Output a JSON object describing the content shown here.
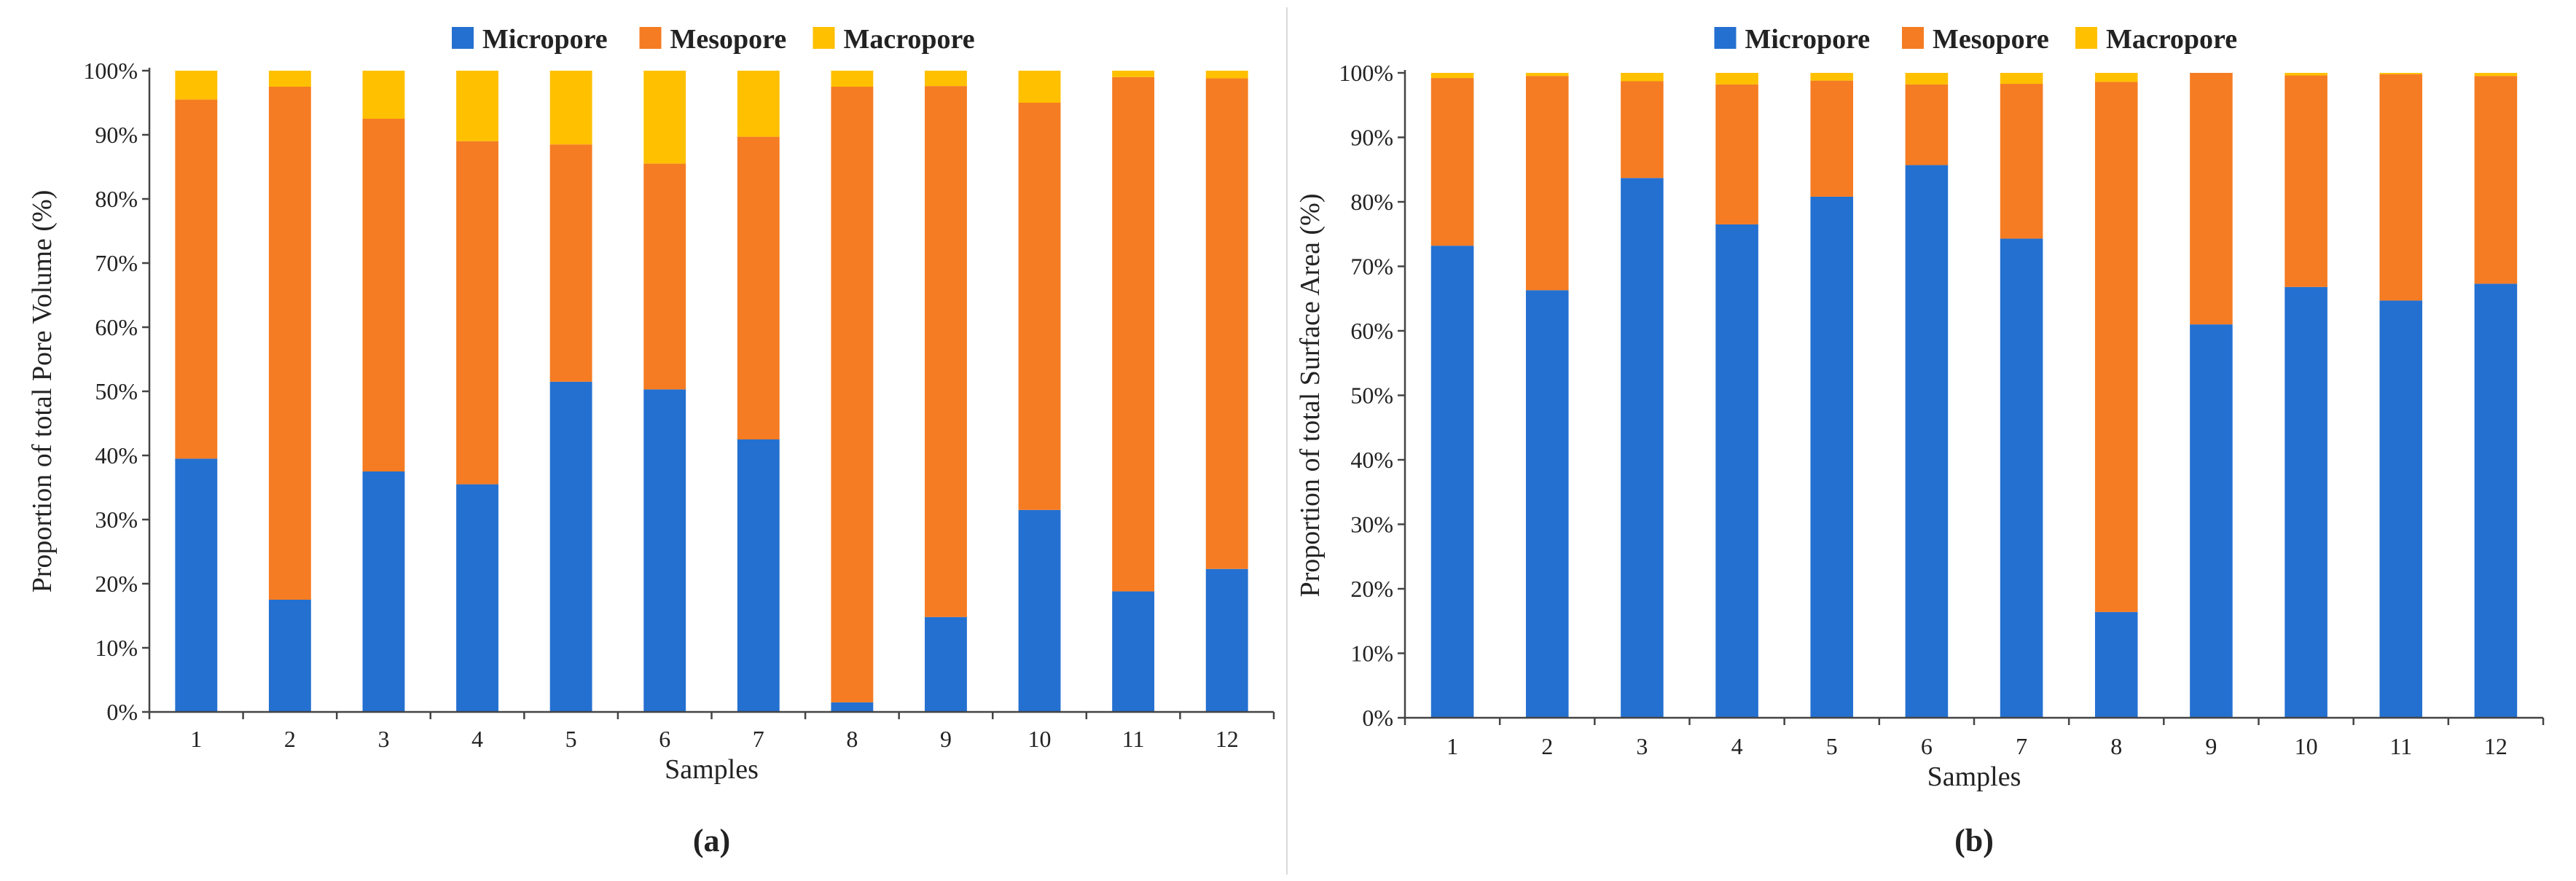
{
  "colors": {
    "micropore": "#2470d0",
    "mesopore": "#f57c22",
    "macropore": "#ffc000",
    "axis": "#444444",
    "divider": "#d9d9d9"
  },
  "chart_data": [
    {
      "type": "bar",
      "stacked": true,
      "panel_label": "(a)",
      "title": "",
      "xlabel": "Samples",
      "ylabel": "Proportion of total Pore Volume (%)",
      "ylim": [
        0,
        100
      ],
      "yticks": [
        0,
        10,
        20,
        30,
        40,
        50,
        60,
        70,
        80,
        90,
        100
      ],
      "ytick_labels": [
        "0%",
        "10%",
        "20%",
        "30%",
        "40%",
        "50%",
        "60%",
        "70%",
        "80%",
        "90%",
        "100%"
      ],
      "legend_position": "top-center",
      "categories": [
        "1",
        "2",
        "3",
        "4",
        "5",
        "6",
        "7",
        "8",
        "9",
        "10",
        "11",
        "12"
      ],
      "series": [
        {
          "name": "Micropore",
          "key": "micropore",
          "values": [
            39.5,
            17.5,
            37.5,
            35.5,
            51.5,
            50.3,
            42.5,
            1.5,
            14.8,
            31.5,
            18.8,
            22.3
          ]
        },
        {
          "name": "Mesopore",
          "key": "mesopore",
          "values": [
            56.0,
            80.0,
            55.0,
            53.5,
            37.0,
            35.2,
            47.2,
            96.0,
            82.8,
            63.5,
            80.2,
            76.5
          ]
        },
        {
          "name": "Macropore",
          "key": "macropore",
          "values": [
            4.5,
            2.5,
            7.5,
            11.0,
            11.5,
            14.5,
            10.3,
            2.5,
            2.4,
            5.0,
            1.0,
            1.2
          ]
        }
      ]
    },
    {
      "type": "bar",
      "stacked": true,
      "panel_label": "(b)",
      "title": "",
      "xlabel": "Samples",
      "ylabel": "Proportion of total Surface Area (%)",
      "ylim": [
        0,
        100
      ],
      "yticks": [
        0,
        10,
        20,
        30,
        40,
        50,
        60,
        70,
        80,
        90,
        100
      ],
      "ytick_labels": [
        "0%",
        "10%",
        "20%",
        "30%",
        "40%",
        "50%",
        "60%",
        "70%",
        "80%",
        "90%",
        "100%"
      ],
      "legend_position": "top-center",
      "categories": [
        "1",
        "2",
        "3",
        "4",
        "5",
        "6",
        "7",
        "8",
        "9",
        "10",
        "11",
        "12"
      ],
      "series": [
        {
          "name": "Micropore",
          "key": "micropore",
          "values": [
            73.2,
            66.3,
            83.7,
            76.5,
            80.8,
            85.7,
            74.3,
            16.4,
            61.0,
            66.8,
            64.7,
            67.3
          ]
        },
        {
          "name": "Mesopore",
          "key": "mesopore",
          "values": [
            26.0,
            33.2,
            15.0,
            21.7,
            18.0,
            12.5,
            24.0,
            82.2,
            39.0,
            32.8,
            35.1,
            32.2
          ]
        },
        {
          "name": "Macropore",
          "key": "macropore",
          "values": [
            0.8,
            0.5,
            1.3,
            1.8,
            1.2,
            1.8,
            1.7,
            1.4,
            0.0,
            0.4,
            0.2,
            0.5
          ]
        }
      ]
    }
  ]
}
